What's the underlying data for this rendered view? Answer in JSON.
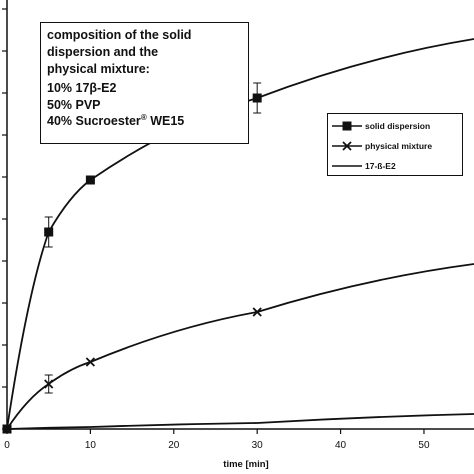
{
  "info_box": {
    "heading_line1": "composition of the solid",
    "heading_line2": "dispersion and the",
    "heading_line3": "physical mixture:",
    "comp1": "10% 17β-E2",
    "comp2": "50% PVP",
    "comp3_text": "40% Sucroester",
    "comp3_sup": "®",
    "comp3_suffix": " WE15"
  },
  "chart_data": {
    "type": "line",
    "title": "",
    "xlabel": "time [min]",
    "ylabel": "",
    "xlim": [
      0,
      56
    ],
    "x_ticks": [
      0,
      10,
      20,
      30,
      40,
      50
    ],
    "legend_position": "right, below the composition box",
    "series": [
      {
        "name": "solid dispersion",
        "marker": "square",
        "color": "#111111",
        "x": [
          0,
          5,
          10,
          30,
          56
        ],
        "y": [
          0,
          197,
          249,
          331,
          390
        ],
        "err": [
          0,
          15,
          0,
          15,
          0
        ]
      },
      {
        "name": "physical mixture",
        "marker": "x",
        "color": "#111111",
        "x": [
          0,
          5,
          10,
          30,
          56
        ],
        "y": [
          0,
          45,
          67,
          117,
          165
        ],
        "err": [
          0,
          9,
          0,
          0,
          0
        ]
      },
      {
        "name": "17-ß-E2",
        "marker": "none",
        "color": "#111111",
        "x": [
          0,
          10,
          30,
          56
        ],
        "y": [
          0,
          2,
          6,
          15
        ],
        "err": [
          0,
          0,
          0,
          0
        ]
      }
    ]
  }
}
